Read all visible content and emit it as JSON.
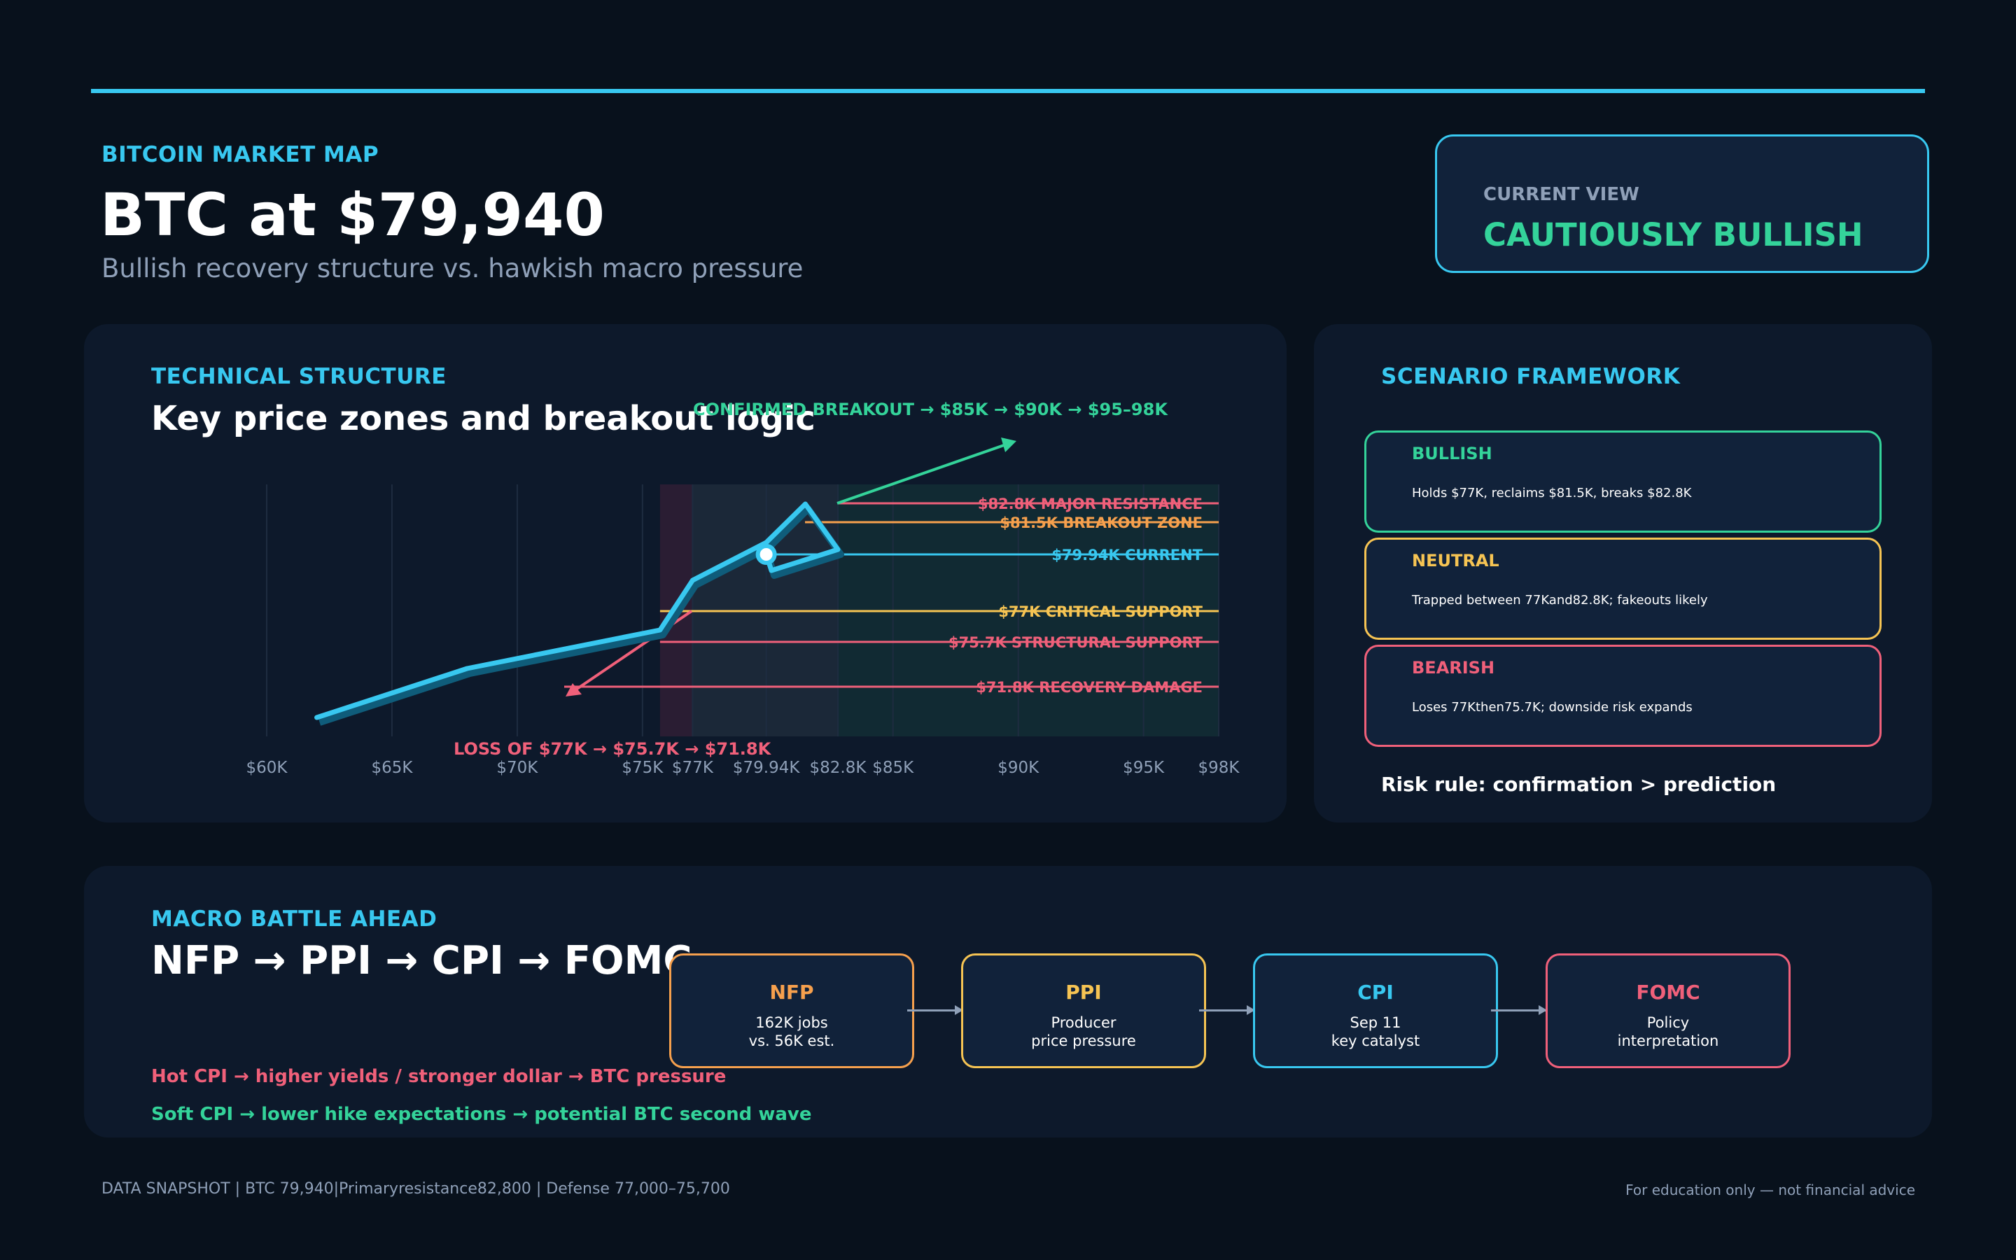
{
  "header": {
    "eyebrow": "BITCOIN MARKET MAP",
    "title": "BTC at $79,940",
    "subtitle": "Bullish recovery structure vs. hawkish macro pressure"
  },
  "current_view": {
    "label": "CURRENT VIEW",
    "value": "CAUTIOUSLY BULLISH"
  },
  "technical": {
    "eyebrow": "TECHNICAL STRUCTURE",
    "title": "Key price zones and breakout logic",
    "breakout_label": "CONFIRMED BREAKOUT → $85K → $90K → $95–98K",
    "loss_label": "LOSS OF $77K → $75.7K → $71.8K"
  },
  "chart_data": {
    "type": "line",
    "x_ticks": [
      {
        "value": 60000,
        "label": "$60K"
      },
      {
        "value": 65000,
        "label": "$65K"
      },
      {
        "value": 70000,
        "label": "$70K"
      },
      {
        "value": 75000,
        "label": "$75K"
      },
      {
        "value": 77000,
        "label": "$77K"
      },
      {
        "value": 79940,
        "label": "$79.94K"
      },
      {
        "value": 82800,
        "label": "$82.8K"
      },
      {
        "value": 85000,
        "label": "$85K"
      },
      {
        "value": 90000,
        "label": "$90K"
      },
      {
        "value": 95000,
        "label": "$95K"
      },
      {
        "value": 98000,
        "label": "$98K"
      }
    ],
    "xlim": [
      60000,
      98000
    ],
    "grid_x": [
      60000,
      65000,
      70000,
      75000,
      77000,
      79940,
      82800,
      85000,
      90000,
      95000,
      98000
    ],
    "zones": [
      {
        "from": 75700,
        "to": 77000,
        "color": "#2a1d33"
      },
      {
        "from": 77000,
        "to": 82800,
        "color": "#1b2838"
      },
      {
        "from": 82800,
        "to": 98000,
        "color": "#112a33"
      }
    ],
    "levels": [
      {
        "value": 82800,
        "label": "$82.8K  MAJOR RESISTANCE",
        "color": "#f0607a"
      },
      {
        "value": 81500,
        "label": "$81.5K  BREAKOUT ZONE",
        "color": "#f6a04d"
      },
      {
        "value": 79940,
        "label": "$79.94K  CURRENT",
        "color": "#38c8f0"
      },
      {
        "value": 77000,
        "label": "$77K  CRITICAL SUPPORT",
        "color": "#f6c453"
      },
      {
        "value": 75700,
        "label": "$75.7K  STRUCTURAL SUPPORT",
        "color": "#f0607a"
      },
      {
        "value": 71800,
        "label": "$71.8K  RECOVERY DAMAGE",
        "color": "#f0607a"
      }
    ],
    "price_path": [
      62000,
      68000,
      75700,
      77000,
      79940,
      81500,
      82800,
      80200,
      79940
    ],
    "current": 79940,
    "colors": {
      "price": "#38c8f0",
      "breakout": "#34d39a",
      "breakdown": "#f0607a"
    }
  },
  "scenarios": {
    "eyebrow": "SCENARIO FRAMEWORK",
    "items": [
      {
        "name": "BULLISH",
        "desc": "Holds $77K, reclaims $81.5K, breaks $82.8K",
        "color": "#34d39a"
      },
      {
        "name": "NEUTRAL",
        "desc": "Trapped between 77Kand82.8K; fakeouts likely",
        "color": "#f6c453"
      },
      {
        "name": "BEARISH",
        "desc": "Loses 77Kthen75.7K; downside risk expands",
        "color": "#f0607a"
      }
    ],
    "risk_rule": "Risk rule: confirmation > prediction"
  },
  "macro": {
    "eyebrow": "MACRO BATTLE AHEAD",
    "title": "NFP → PPI → CPI → FOMC",
    "events": [
      {
        "name": "NFP",
        "line1": "162K jobs",
        "line2": "vs. 56K est.",
        "color": "#f6a04d"
      },
      {
        "name": "PPI",
        "line1": "Producer",
        "line2": "price pressure",
        "color": "#f6c453"
      },
      {
        "name": "CPI",
        "line1": "Sep 11",
        "line2": "key catalyst",
        "color": "#38c8f0"
      },
      {
        "name": "FOMC",
        "line1": "Policy",
        "line2": "interpretation",
        "color": "#f0607a"
      }
    ],
    "hot_cpi": "Hot CPI  → higher yields / stronger dollar → BTC pressure",
    "soft_cpi": "Soft CPI → lower hike expectations → potential BTC second wave"
  },
  "footer": {
    "left": "DATA SNAPSHOT  |  BTC 79,940|Primaryresistance82,800  |  Defense 77,000–75,700",
    "right": "For education only — not financial advice"
  }
}
